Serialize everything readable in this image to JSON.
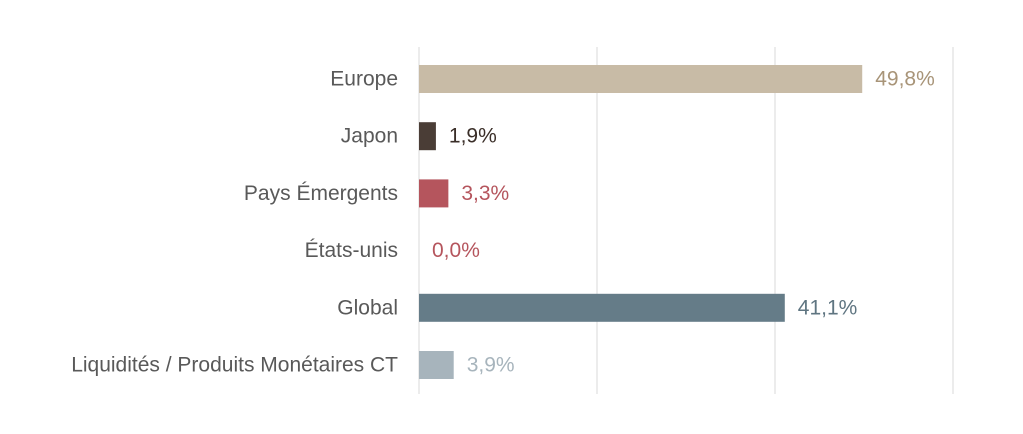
{
  "chart_data": {
    "type": "bar",
    "orientation": "horizontal",
    "categories": [
      "Europe",
      "Japon",
      "Pays Émergents",
      "États-unis",
      "Global",
      "Liquidités / Produits Monétaires CT"
    ],
    "values": [
      49.8,
      1.9,
      3.3,
      0.0,
      41.1,
      3.9
    ],
    "value_labels": [
      "49,8%",
      "1,9%",
      "3,3%",
      "0,0%",
      "41,1%",
      "3,9%"
    ],
    "colors": [
      "#c8bba6",
      "#4a3d36",
      "#b5555d",
      "#b5555d",
      "#657c88",
      "#a7b4bc"
    ],
    "label_colors": [
      "#a89478",
      "#3a2e28",
      "#b5555d",
      "#b5555d",
      "#5f7581",
      "#a7b4bc"
    ],
    "xlim": [
      0,
      60
    ],
    "grid": true,
    "title": "",
    "xlabel": "",
    "ylabel": "",
    "legend": "none"
  }
}
